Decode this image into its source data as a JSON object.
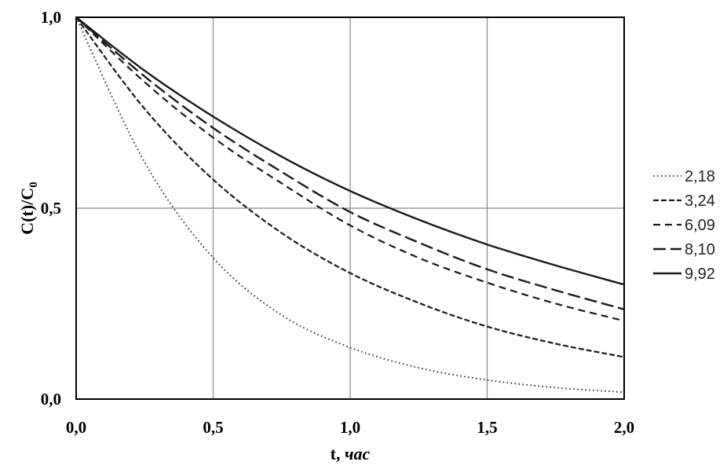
{
  "chart_data": {
    "type": "line",
    "xlabel_main": "t, ",
    "xlabel_unit": "час",
    "ylabel_main": "C(t)/C",
    "ylabel_sub": "0",
    "xlim": [
      0,
      2
    ],
    "ylim": [
      0,
      1
    ],
    "x_ticks": [
      0,
      0.5,
      1.0,
      1.5,
      2.0
    ],
    "x_tick_labels": [
      "0,0",
      "0,5",
      "1,0",
      "1,5",
      "2,0"
    ],
    "y_ticks": [
      0,
      0.5,
      1.0
    ],
    "y_tick_labels": [
      "0,0",
      "0,5",
      "1,0"
    ],
    "grid": true,
    "legend_position": "right",
    "x": [
      0,
      0.25,
      0.5,
      0.75,
      1.0,
      1.25,
      1.5,
      1.75,
      2.0
    ],
    "series": [
      {
        "name": "2,18",
        "style": "dotted",
        "values": [
          1.0,
          0.62,
          0.37,
          0.22,
          0.135,
          0.082,
          0.05,
          0.03,
          0.018
        ]
      },
      {
        "name": "3,24",
        "style": "dash-short",
        "values": [
          1.0,
          0.76,
          0.575,
          0.435,
          0.33,
          0.252,
          0.19,
          0.145,
          0.11
        ]
      },
      {
        "name": "6,09",
        "style": "dash-medium",
        "values": [
          1.0,
          0.83,
          0.685,
          0.565,
          0.455,
          0.37,
          0.305,
          0.25,
          0.205
        ]
      },
      {
        "name": "8,10",
        "style": "dash-long",
        "values": [
          1.0,
          0.845,
          0.71,
          0.595,
          0.49,
          0.41,
          0.34,
          0.285,
          0.235
        ]
      },
      {
        "name": "9,92",
        "style": "solid",
        "values": [
          1.0,
          0.86,
          0.74,
          0.635,
          0.545,
          0.47,
          0.405,
          0.35,
          0.3
        ]
      }
    ]
  }
}
